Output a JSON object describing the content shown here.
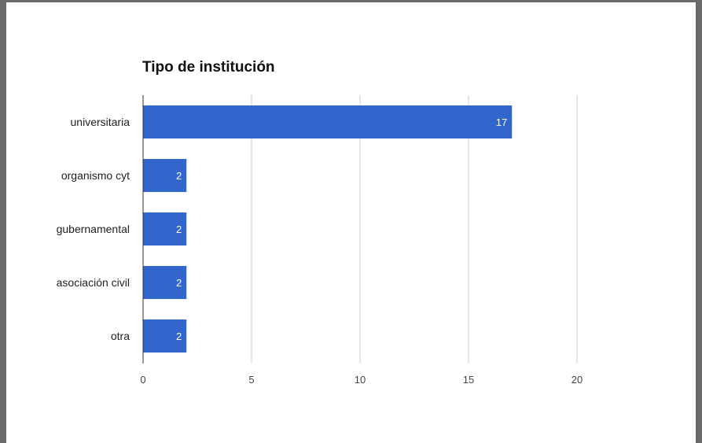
{
  "chart_data": {
    "type": "bar",
    "orientation": "horizontal",
    "title": "Tipo de institución",
    "categories": [
      "universitaria",
      "organismo cyt",
      "gubernamental",
      "asociación civil",
      "otra"
    ],
    "values": [
      17,
      2,
      2,
      2,
      2
    ],
    "xlim": [
      0,
      20
    ],
    "xticks": [
      "0",
      "5",
      "10",
      "15",
      "20"
    ],
    "grid": true,
    "bar_color": "#3366cc"
  },
  "window": {
    "partial_header_text": "(                    )"
  }
}
